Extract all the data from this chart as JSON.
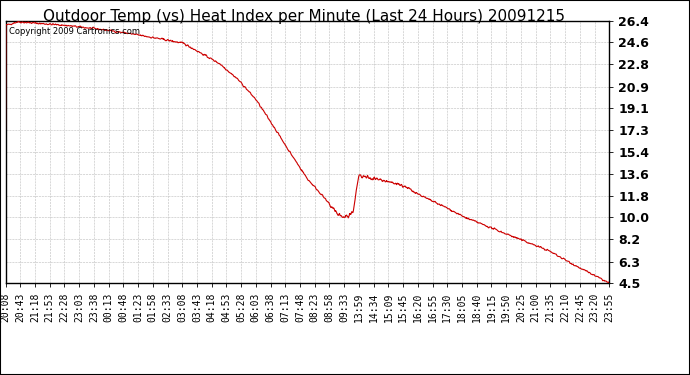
{
  "title": "Outdoor Temp (vs) Heat Index per Minute (Last 24 Hours) 20091215",
  "copyright_text": "Copyright 2009 Cartronics.com",
  "line_color": "#cc0000",
  "background_color": "#ffffff",
  "plot_bg_color": "#ffffff",
  "grid_color": "#bbbbbb",
  "border_color": "#000000",
  "yticks": [
    4.5,
    6.3,
    8.2,
    10.0,
    11.8,
    13.6,
    15.4,
    17.3,
    19.1,
    20.9,
    22.8,
    24.6,
    26.4
  ],
  "xtick_labels": [
    "20:08",
    "20:43",
    "21:18",
    "21:53",
    "22:28",
    "23:03",
    "23:38",
    "00:13",
    "00:48",
    "01:23",
    "01:58",
    "02:33",
    "03:08",
    "03:43",
    "04:18",
    "04:53",
    "05:28",
    "06:03",
    "06:38",
    "07:13",
    "07:48",
    "08:23",
    "08:58",
    "09:33",
    "13:59",
    "14:34",
    "15:09",
    "15:45",
    "16:20",
    "16:55",
    "17:30",
    "18:05",
    "18:40",
    "19:15",
    "19:50",
    "20:25",
    "21:00",
    "21:35",
    "22:10",
    "22:45",
    "23:20",
    "23:55"
  ],
  "ymin": 4.5,
  "ymax": 26.4,
  "title_fontsize": 11,
  "tick_fontsize": 7,
  "ylabel_fontsize": 9,
  "copyright_fontsize": 6
}
